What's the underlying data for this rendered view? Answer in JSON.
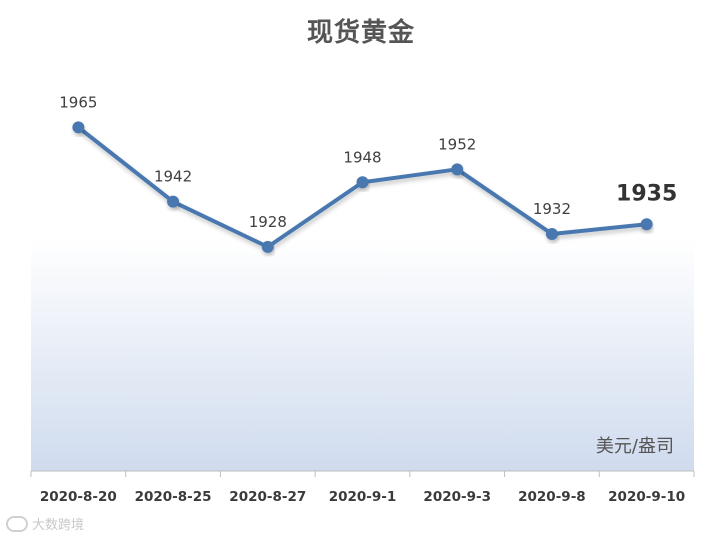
{
  "chart_data": {
    "type": "line",
    "title": "现货黄金",
    "unit": "美元/盎司",
    "categories": [
      "2020-8-20",
      "2020-8-25",
      "2020-8-27",
      "2020-9-1",
      "2020-9-3",
      "2020-9-8",
      "2020-9-10"
    ],
    "series": [
      {
        "values": [
          1965,
          1942,
          1928,
          1948,
          1952,
          1932,
          1935
        ]
      }
    ],
    "highlight_index": 6,
    "line_color": "#4a78b0",
    "ylim": [
      1880,
      1975
    ],
    "grid": false,
    "legend": "none"
  },
  "watermark": {
    "text": "大数跨境"
  }
}
